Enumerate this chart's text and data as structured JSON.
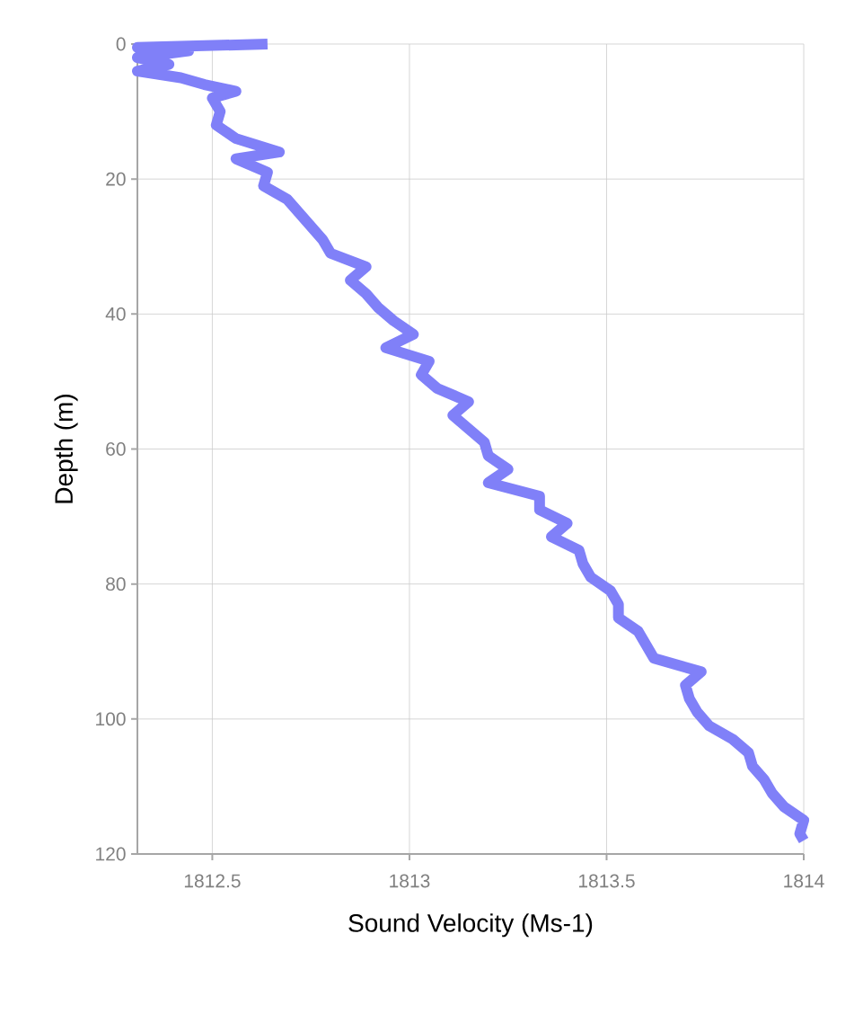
{
  "chart_data": {
    "type": "line",
    "xlabel": "Sound Velocity (Ms-1)",
    "ylabel": "Depth (m)",
    "xlim": [
      1812.31,
      1814
    ],
    "ylim": [
      120,
      0
    ],
    "xticks": [
      1812.5,
      1813,
      1813.5,
      1814
    ],
    "yticks": [
      0,
      20,
      40,
      60,
      80,
      100,
      120
    ],
    "grid": true,
    "color": "#8080f8",
    "line_style": "solid",
    "marker": "none",
    "x": [
      1812.64,
      1812.31,
      1812.44,
      1812.31,
      1812.39,
      1812.31,
      1812.42,
      1812.48,
      1812.56,
      1812.5,
      1812.52,
      1812.51,
      1812.56,
      1812.67,
      1812.56,
      1812.64,
      1812.63,
      1812.69,
      1812.72,
      1812.75,
      1812.78,
      1812.8,
      1812.89,
      1812.85,
      1812.89,
      1812.92,
      1812.96,
      1813.01,
      1812.94,
      1813.05,
      1813.03,
      1813.07,
      1813.15,
      1813.11,
      1813.15,
      1813.19,
      1813.2,
      1813.25,
      1813.2,
      1813.33,
      1813.33,
      1813.4,
      1813.36,
      1813.43,
      1813.44,
      1813.46,
      1813.51,
      1813.53,
      1813.53,
      1813.58,
      1813.6,
      1813.62,
      1813.74,
      1813.7,
      1813.71,
      1813.73,
      1813.76,
      1813.82,
      1813.86,
      1813.87,
      1813.9,
      1813.92,
      1813.95,
      1814.0,
      1813.99,
      1814.0
    ],
    "values": [
      0,
      0.5,
      1,
      2,
      3,
      4,
      5,
      6,
      7,
      8,
      10,
      12,
      14,
      16,
      17,
      19,
      21,
      23,
      25,
      27,
      29,
      31,
      33,
      35,
      37,
      39,
      41,
      43,
      45,
      47,
      49,
      51,
      53,
      55,
      57,
      59,
      61,
      63,
      65,
      67,
      69,
      71,
      73,
      75,
      77,
      79,
      81,
      83,
      85,
      87,
      89,
      91,
      93,
      95,
      97,
      99,
      101,
      103,
      105,
      107,
      109,
      111,
      113,
      115,
      117,
      118
    ]
  }
}
